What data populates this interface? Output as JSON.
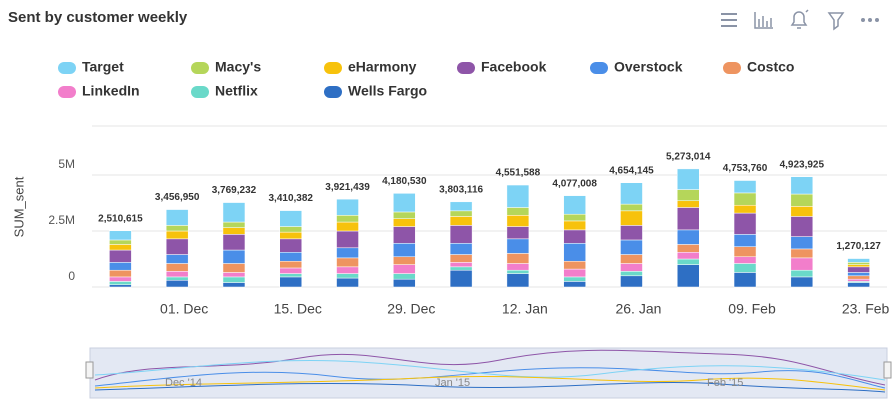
{
  "chart_data": {
    "type": "stacked-bar",
    "title": "Sent by customer weekly",
    "y_label": "SUM_sent",
    "categories": [
      null,
      "01. Dec",
      null,
      "15. Dec",
      null,
      "29. Dec",
      null,
      "12. Jan",
      null,
      "26. Jan",
      null,
      "09. Feb",
      null,
      "23. Feb"
    ],
    "series": [
      {
        "name": "Target",
        "color": "#7dd3f5",
        "values": [
          410615,
          706950,
          869232,
          710382,
          721439,
          830530,
          403116,
          1001588,
          827008,
          954145,
          923014,
          553760,
          773925,
          170127
        ]
      },
      {
        "name": "Macy's",
        "color": "#b5d65a",
        "values": [
          200000,
          250000,
          250000,
          250000,
          300000,
          300000,
          250000,
          350000,
          300000,
          300000,
          500000,
          550000,
          550000,
          100000
        ]
      },
      {
        "name": "eHarmony",
        "color": "#f7c20c",
        "values": [
          250000,
          350000,
          300000,
          300000,
          400000,
          350000,
          400000,
          500000,
          400000,
          650000,
          300000,
          350000,
          450000,
          100000
        ]
      },
      {
        "name": "Facebook",
        "color": "#8e55a8",
        "values": [
          550000,
          700000,
          700000,
          600000,
          750000,
          750000,
          800000,
          550000,
          600000,
          650000,
          1000000,
          950000,
          900000,
          250000
        ]
      },
      {
        "name": "Overstock",
        "color": "#4a8ee8",
        "values": [
          350000,
          400000,
          600000,
          400000,
          450000,
          600000,
          500000,
          650000,
          800000,
          650000,
          650000,
          550000,
          550000,
          150000
        ]
      },
      {
        "name": "Costco",
        "color": "#ee9460",
        "values": [
          300000,
          350000,
          400000,
          300000,
          400000,
          350000,
          350000,
          450000,
          350000,
          400000,
          350000,
          450000,
          400000,
          150000
        ]
      },
      {
        "name": "LinkedIn",
        "color": "#f27ecb",
        "values": [
          200000,
          250000,
          200000,
          250000,
          300000,
          400000,
          200000,
          300000,
          350000,
          350000,
          300000,
          300000,
          550000,
          100000
        ]
      },
      {
        "name": "Netflix",
        "color": "#6ad9c9",
        "values": [
          150000,
          150000,
          250000,
          150000,
          200000,
          250000,
          150000,
          150000,
          200000,
          200000,
          250000,
          400000,
          300000,
          50000
        ]
      },
      {
        "name": "Wells Fargo",
        "color": "#2e6fc4",
        "values": [
          100000,
          300000,
          200000,
          450000,
          400000,
          350000,
          750000,
          600000,
          250000,
          500000,
          1000000,
          650000,
          450000,
          200000
        ]
      }
    ],
    "totals": [
      2510615,
      3456950,
      3769232,
      3410382,
      3921439,
      4180530,
      3803116,
      4551588,
      4077008,
      4654145,
      5273014,
      4753760,
      4923925,
      1270127
    ],
    "total_labels": [
      "2,510,615",
      "3,456,950",
      "3,769,232",
      "3,410,382",
      "3,921,439",
      "4,180,530",
      "3,803,116",
      "4,551,588",
      "4,077,008",
      "4,654,145",
      "5,273,014",
      "4,753,760",
      "4,923,925",
      "1,270,127"
    ],
    "ylim": [
      0,
      7500000
    ],
    "yticks": [
      {
        "value": 0,
        "label": "0"
      },
      {
        "value": 2500000,
        "label": "2.5M"
      },
      {
        "value": 5000000,
        "label": "5M"
      }
    ],
    "grid": true,
    "navigator_labels": [
      "Dec '14",
      "Jan '15",
      "Feb '15"
    ]
  }
}
